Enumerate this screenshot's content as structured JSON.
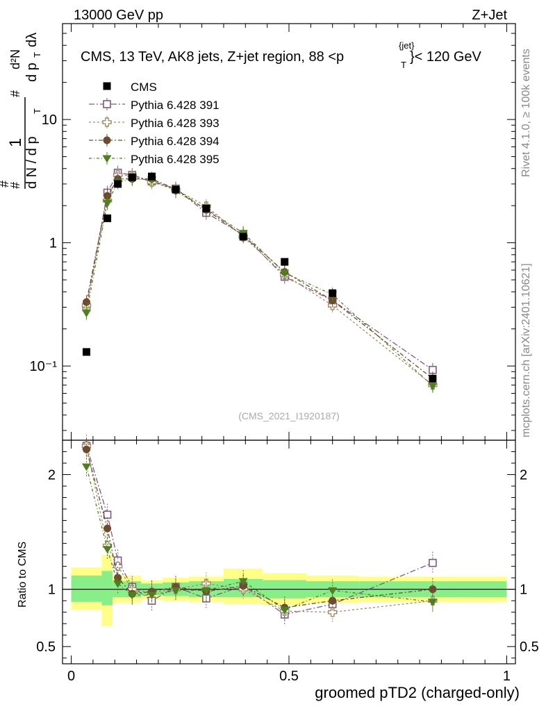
{
  "header": {
    "left": "13000 GeV pp",
    "right": "Z+Jet"
  },
  "title": {
    "main": "CMS, 13 TeV, AK8 jets, Z+jet region, 88 <p",
    "sub": "T",
    "sup": "{jet}",
    "tail": "}< 120 GeV"
  },
  "ylabel_lines": [
    "1",
    "d N / d p",
    "T",
    "#",
    "#",
    "d p",
    "T",
    "dλ",
    "d²N",
    "#"
  ],
  "side_labels": {
    "rivet": "Rivet 4.1.0, ≥ 100k events",
    "mcplots": "mcplots.cern.ch [arXiv:2401.10621]"
  },
  "watermark": "(CMS_2021_I1920187)",
  "chart_data": [
    {
      "type": "scatter",
      "role": "main",
      "yscale": "log",
      "xlim": [
        -0.02,
        1.02
      ],
      "ylim": [
        0.025,
        60
      ],
      "xlabel": "groomed pTD2 (charged-only)",
      "ytick_values": [
        0.1,
        1,
        10
      ],
      "ytick_labels": [
        "10⁻¹",
        "1",
        "10"
      ],
      "legend_placement": "top-left",
      "x": [
        0.035,
        0.083,
        0.107,
        0.14,
        0.185,
        0.24,
        0.31,
        0.395,
        0.49,
        0.6,
        0.83
      ],
      "series": [
        {
          "name": "CMS",
          "color": "#000000",
          "marker": "square-filled",
          "values": [
            0.13,
            1.58,
            3.0,
            3.4,
            3.45,
            2.7,
            1.9,
            1.12,
            0.7,
            0.39,
            0.079
          ]
        },
        {
          "name": "Pythia 6.428 391",
          "color": "#7f5a7f",
          "marker": "square-open",
          "dash": "8,3,2,3",
          "values": [
            0.3,
            2.55,
            3.7,
            3.55,
            3.15,
            2.75,
            1.75,
            1.16,
            0.53,
            0.34,
            0.093
          ]
        },
        {
          "name": "Pythia 6.428 393",
          "color": "#a08a6a",
          "marker": "plus-open",
          "dash": "3,3",
          "values": [
            0.31,
            2.2,
            3.55,
            3.5,
            3.1,
            2.7,
            1.98,
            1.12,
            0.55,
            0.31,
            0.07
          ]
        },
        {
          "name": "Pythia 6.428 394",
          "color": "#6e4a2e",
          "marker": "circle-filled",
          "dash": "6,3,2,3",
          "values": [
            0.33,
            2.4,
            3.3,
            3.3,
            3.3,
            2.72,
            1.85,
            1.15,
            0.58,
            0.34,
            0.079
          ]
        },
        {
          "name": "Pythia 6.428 395",
          "color": "#4f7f1f",
          "marker": "triangle-down-filled",
          "dash": "4,3,1,3",
          "values": [
            0.27,
            2.1,
            3.1,
            3.3,
            3.25,
            2.62,
            1.88,
            1.2,
            0.57,
            0.38,
            0.069
          ]
        }
      ]
    },
    {
      "type": "scatter",
      "role": "ratio",
      "ylabel": "Ratio to CMS",
      "xlim": [
        -0.02,
        1.02
      ],
      "ylim": [
        0.35,
        2.3
      ],
      "ytick_values": [
        0.5,
        1,
        2
      ],
      "ytick_labels": [
        "0.5",
        "1",
        "2"
      ],
      "xtick_values": [
        0,
        0.5,
        1
      ],
      "xtick_labels": [
        "0",
        "0.5",
        "1"
      ],
      "bin_edges": [
        0.0,
        0.07,
        0.095,
        0.12,
        0.16,
        0.21,
        0.27,
        0.35,
        0.44,
        0.54,
        0.66,
        1.0
      ],
      "band_inner": [
        [
          0.89,
          1.12
        ],
        [
          0.86,
          1.16
        ],
        [
          0.93,
          1.07
        ],
        [
          0.93,
          1.07
        ],
        [
          0.95,
          1.05
        ],
        [
          0.94,
          1.06
        ],
        [
          0.93,
          1.07
        ],
        [
          0.93,
          1.09
        ],
        [
          0.92,
          1.08
        ],
        [
          0.93,
          1.07
        ],
        [
          0.93,
          1.07
        ]
      ],
      "band_outer": [
        [
          0.82,
          1.19
        ],
        [
          0.68,
          1.3
        ],
        [
          0.88,
          1.12
        ],
        [
          0.88,
          1.12
        ],
        [
          0.91,
          1.08
        ],
        [
          0.9,
          1.1
        ],
        [
          0.89,
          1.11
        ],
        [
          0.87,
          1.18
        ],
        [
          0.86,
          1.14
        ],
        [
          0.88,
          1.12
        ],
        [
          0.89,
          1.11
        ]
      ],
      "x": [
        0.035,
        0.083,
        0.107,
        0.14,
        0.185,
        0.24,
        0.31,
        0.395,
        0.49,
        0.6,
        0.83
      ],
      "series": [
        {
          "name": "Pythia 6.428 391",
          "values": [
            2.25,
            1.65,
            1.25,
            1.02,
            0.9,
            1.02,
            0.92,
            1.03,
            0.78,
            0.87,
            1.23
          ]
        },
        {
          "name": "Pythia 6.428 393",
          "values": [
            2.25,
            1.38,
            1.2,
            1.0,
            0.97,
            1.0,
            1.05,
            1.0,
            0.81,
            0.8,
            0.9
          ]
        },
        {
          "name": "Pythia 6.428 394",
          "values": [
            2.22,
            1.53,
            1.1,
            0.96,
            0.98,
            1.02,
            0.98,
            1.03,
            0.84,
            0.9,
            1.0
          ]
        },
        {
          "name": "Pythia 6.428 395",
          "values": [
            2.07,
            1.35,
            1.05,
            0.95,
            0.95,
            0.99,
            0.99,
            1.07,
            0.82,
            0.99,
            0.89
          ]
        }
      ]
    }
  ]
}
